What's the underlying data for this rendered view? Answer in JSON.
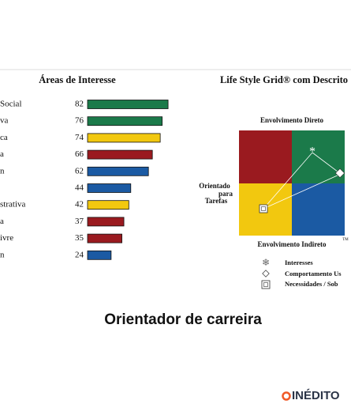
{
  "chart_data": {
    "type": "bar",
    "title": "Áreas de Interesse",
    "categories": [
      "Social",
      "va",
      "ca",
      "a",
      "n",
      null,
      "strativa",
      "a",
      "ivre",
      "n"
    ],
    "values": [
      82,
      76,
      74,
      66,
      62,
      44,
      42,
      37,
      35,
      24
    ],
    "colors": [
      "#1b7a4a",
      "#1b7a4a",
      "#f2c80f",
      "#9a1a1f",
      "#1b5aa3",
      "#1b5aa3",
      "#f2c80f",
      "#9a1a1f",
      "#9a1a1f",
      "#1b5aa3"
    ]
  },
  "grid": {
    "title": "Life Style Grid® com Descrito",
    "top_label": "Envolvimento Direto",
    "left_label": [
      "Orientado",
      "para",
      "Tarefas"
    ],
    "bottom_label": "Envolvimento Indireto",
    "trademark": "TM",
    "legend": [
      "Interesses",
      "Comportamento Us",
      "Necessidades / Sob"
    ]
  },
  "page_title": "Orientador de carreira",
  "logo": "INÉDITO"
}
